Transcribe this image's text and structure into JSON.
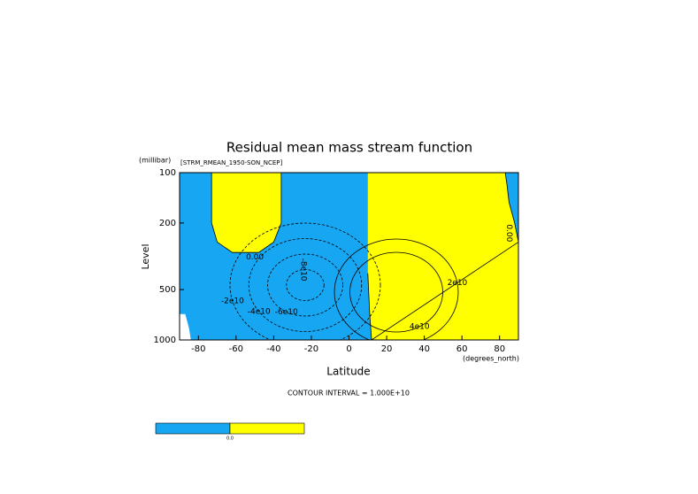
{
  "chart_data": {
    "type": "contour",
    "title": "Residual mean mass stream function",
    "subtitle": "[STRM_RMEAN_1950-SON_NCEP]",
    "y_units": "(millibar)",
    "x_units": "(degrees_north)",
    "x_label": "Latitude",
    "y_label": "Level",
    "note": "CONTOUR INTERVAL = 1.000E+10",
    "xlim": [
      -90,
      90
    ],
    "xticks": [
      -80,
      -60,
      -40,
      -20,
      0,
      20,
      40,
      60,
      80
    ],
    "ylim": [
      1000,
      100
    ],
    "yticks": [
      100,
      200,
      500,
      1000
    ],
    "log_y": true,
    "fill_colors": [
      "#16a6f2",
      "#ffff00"
    ],
    "colorbar_ticks": [
      {
        "value": 0,
        "label": "0.0"
      }
    ],
    "contours": [
      {
        "value": 0,
        "label": "0.00"
      },
      {
        "value": 0,
        "label": "0.00"
      },
      {
        "value": -20000000000,
        "label": "-2e10"
      },
      {
        "value": -40000000000,
        "label": "-4e10"
      },
      {
        "value": -60000000000,
        "label": "-6e10"
      },
      {
        "value": -80000000000,
        "label": "-8e10"
      },
      {
        "value": 20000000000,
        "label": "2e10"
      },
      {
        "value": 40000000000,
        "label": "4e10"
      }
    ]
  }
}
